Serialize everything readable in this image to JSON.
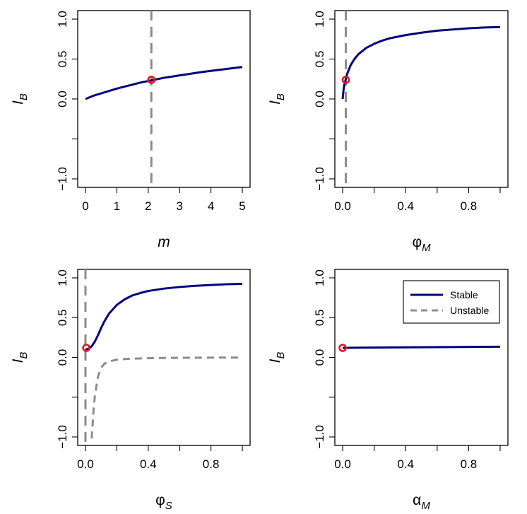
{
  "colors": {
    "stable": "#00007f",
    "unstable": "#8c8c8c",
    "marker": "#e8141e",
    "frame": "#000000"
  },
  "chart_data": [
    {
      "type": "line",
      "xlabel": "m",
      "ylabel": "I_B",
      "xlim": [
        0,
        5
      ],
      "ylim": [
        -1.0,
        1.0
      ],
      "xticks": [
        0,
        1,
        2,
        3,
        4,
        5
      ],
      "xtick_labels": [
        "0",
        "1",
        "2",
        "3",
        "4",
        "5"
      ],
      "yticks": [
        -1.0,
        -0.5,
        0.0,
        0.5,
        1.0
      ],
      "ytick_labels": [
        "−1.0",
        "",
        "0.0",
        "0.5",
        "1.0"
      ],
      "series": [
        {
          "style": "stable",
          "x": [
            0,
            0.25,
            0.5,
            0.75,
            1,
            1.25,
            1.5,
            1.75,
            2,
            2.25,
            2.5,
            2.75,
            3,
            3.25,
            3.5,
            3.75,
            4,
            4.25,
            4.5,
            4.75,
            5
          ],
          "y": [
            0.0,
            0.04,
            0.07,
            0.1,
            0.13,
            0.155,
            0.18,
            0.205,
            0.225,
            0.245,
            0.265,
            0.28,
            0.295,
            0.31,
            0.325,
            0.34,
            0.352,
            0.364,
            0.376,
            0.388,
            0.4
          ]
        }
      ],
      "vline": {
        "x": 2.1
      },
      "point": {
        "x": 2.1,
        "y": 0.24
      }
    },
    {
      "type": "line",
      "xlabel": "φ",
      "xlabel_sub": "M",
      "ylabel": "I_B",
      "xlim": [
        0,
        1
      ],
      "ylim": [
        -1.0,
        1.0
      ],
      "xticks": [
        0,
        0.2,
        0.4,
        0.6,
        0.8,
        1.0
      ],
      "xtick_labels": [
        "0.0",
        "",
        "0.4",
        "",
        "0.8",
        ""
      ],
      "yticks": [
        -1.0,
        -0.5,
        0.0,
        0.5,
        1.0
      ],
      "ytick_labels": [
        "−1.0",
        "",
        "0.0",
        "0.5",
        "1.0"
      ],
      "series": [
        {
          "style": "stable",
          "x": [
            0.0,
            0.005,
            0.01,
            0.02,
            0.03,
            0.05,
            0.075,
            0.1,
            0.15,
            0.2,
            0.25,
            0.3,
            0.4,
            0.5,
            0.6,
            0.7,
            0.8,
            0.9,
            1.0
          ],
          "y": [
            0.0,
            0.1,
            0.17,
            0.25,
            0.32,
            0.42,
            0.5,
            0.56,
            0.64,
            0.69,
            0.73,
            0.76,
            0.8,
            0.83,
            0.855,
            0.87,
            0.885,
            0.895,
            0.9
          ]
        }
      ],
      "vline": {
        "x": 0.02
      },
      "point": {
        "x": 0.02,
        "y": 0.24
      }
    },
    {
      "type": "line",
      "xlabel": "φ",
      "xlabel_sub": "S",
      "ylabel": "I_B",
      "xlim": [
        0,
        1
      ],
      "ylim": [
        -1.0,
        1.0
      ],
      "xticks": [
        0,
        0.2,
        0.4,
        0.6,
        0.8,
        1.0
      ],
      "xtick_labels": [
        "0.0",
        "",
        "0.4",
        "",
        "0.8",
        ""
      ],
      "yticks": [
        -1.0,
        -0.5,
        0.0,
        0.5,
        1.0
      ],
      "ytick_labels": [
        "−1.0",
        "",
        "0.0",
        "0.5",
        "1.0"
      ],
      "series": [
        {
          "style": "stable",
          "x": [
            0.0,
            0.02,
            0.04,
            0.06,
            0.08,
            0.1,
            0.12,
            0.15,
            0.2,
            0.25,
            0.3,
            0.35,
            0.4,
            0.5,
            0.6,
            0.7,
            0.8,
            0.9,
            1.0
          ],
          "y": [
            0.1,
            0.11,
            0.14,
            0.2,
            0.28,
            0.37,
            0.45,
            0.55,
            0.66,
            0.73,
            0.78,
            0.81,
            0.835,
            0.865,
            0.885,
            0.9,
            0.91,
            0.92,
            0.925
          ]
        },
        {
          "style": "unstable",
          "x": [
            0.04,
            0.05,
            0.06,
            0.08,
            0.1,
            0.12,
            0.15,
            0.2,
            0.25,
            0.3,
            0.4,
            0.5,
            0.6,
            0.7,
            0.8,
            0.9,
            1.0
          ],
          "y": [
            -1.02,
            -0.7,
            -0.48,
            -0.24,
            -0.13,
            -0.08,
            -0.05,
            -0.03,
            -0.02,
            -0.015,
            -0.01,
            -0.007,
            -0.005,
            -0.004,
            -0.003,
            -0.002,
            -0.002
          ]
        }
      ],
      "vline": {
        "x": 0.0
      },
      "point": {
        "x": 0.005,
        "y": 0.12
      }
    },
    {
      "type": "line",
      "xlabel": "α",
      "xlabel_sub": "M",
      "ylabel": "I_B",
      "xlim": [
        0,
        1
      ],
      "ylim": [
        -1.0,
        1.0
      ],
      "xticks": [
        0,
        0.2,
        0.4,
        0.6,
        0.8,
        1.0
      ],
      "xtick_labels": [
        "0.0",
        "",
        "0.4",
        "",
        "0.8",
        ""
      ],
      "yticks": [
        -1.0,
        -0.5,
        0.0,
        0.5,
        1.0
      ],
      "ytick_labels": [
        "−1.0",
        "",
        "0.0",
        "0.5",
        "1.0"
      ],
      "series": [
        {
          "style": "stable",
          "x": [
            0.0,
            0.25,
            0.5,
            0.75,
            1.0
          ],
          "y": [
            0.12,
            0.125,
            0.128,
            0.131,
            0.134
          ]
        }
      ],
      "point": {
        "x": 0.0,
        "y": 0.12
      },
      "legend": {
        "placement": "top-right",
        "entries": [
          {
            "label": "Stable",
            "style": "stable"
          },
          {
            "label": "Unstable",
            "style": "unstable"
          }
        ]
      }
    }
  ]
}
